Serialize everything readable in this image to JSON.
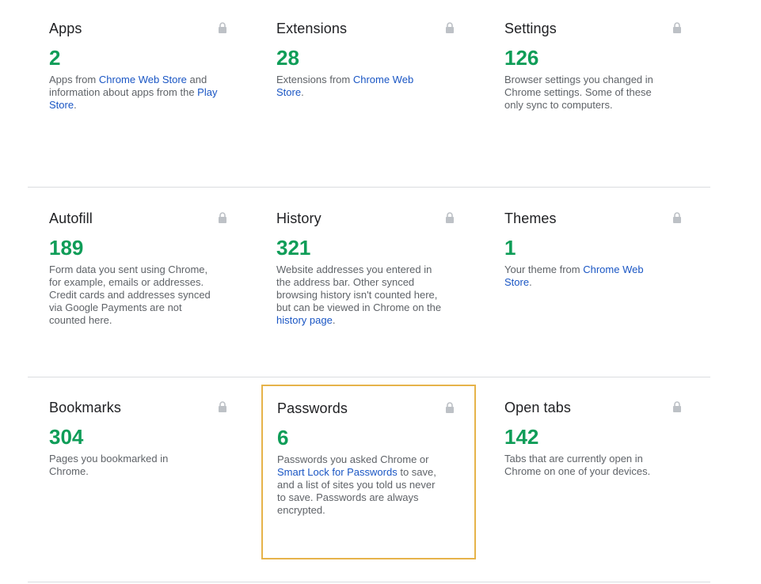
{
  "cards": [
    {
      "title": "Apps",
      "count": "2",
      "desc": [
        {
          "text": "Apps from "
        },
        {
          "link": "Chrome Web Store"
        },
        {
          "text": " and information about apps from the "
        },
        {
          "link": "Play Store"
        },
        {
          "text": "."
        }
      ]
    },
    {
      "title": "Extensions",
      "count": "28",
      "desc": [
        {
          "text": "Extensions from "
        },
        {
          "link": "Chrome Web Store"
        },
        {
          "text": "."
        }
      ]
    },
    {
      "title": "Settings",
      "count": "126",
      "desc": [
        {
          "text": "Browser settings you changed in Chrome settings. Some of these only sync to computers."
        }
      ]
    },
    {
      "title": "Autofill",
      "count": "189",
      "desc": [
        {
          "text": "Form data you sent using Chrome, for example, emails or addresses. Credit cards and addresses synced via Google Payments are not counted here."
        }
      ]
    },
    {
      "title": "History",
      "count": "321",
      "desc": [
        {
          "text": "Website addresses you entered in the address bar. Other synced browsing history isn't counted here, but can be viewed in Chrome on the "
        },
        {
          "link": "history page"
        },
        {
          "text": "."
        }
      ]
    },
    {
      "title": "Themes",
      "count": "1",
      "desc": [
        {
          "text": "Your theme from "
        },
        {
          "link": "Chrome Web Store"
        },
        {
          "text": "."
        }
      ]
    },
    {
      "title": "Bookmarks",
      "count": "304",
      "desc": [
        {
          "text": "Pages you bookmarked in Chrome."
        }
      ]
    },
    {
      "title": "Passwords",
      "count": "6",
      "desc": [
        {
          "text": "Passwords you asked Chrome or "
        },
        {
          "link": "Smart Lock for Passwords"
        },
        {
          "text": " to save, and a list of sites you told us never to save. Passwords are always encrypted."
        }
      ]
    },
    {
      "title": "Open tabs",
      "count": "142",
      "desc": [
        {
          "text": "Tabs that are currently open in Chrome on one of your devices."
        }
      ]
    }
  ],
  "colors": {
    "count": "#0f9d58",
    "link": "#1a56c4",
    "highlight_border": "#e6b34a"
  },
  "icons": {
    "card_corner": "lock-icon"
  }
}
